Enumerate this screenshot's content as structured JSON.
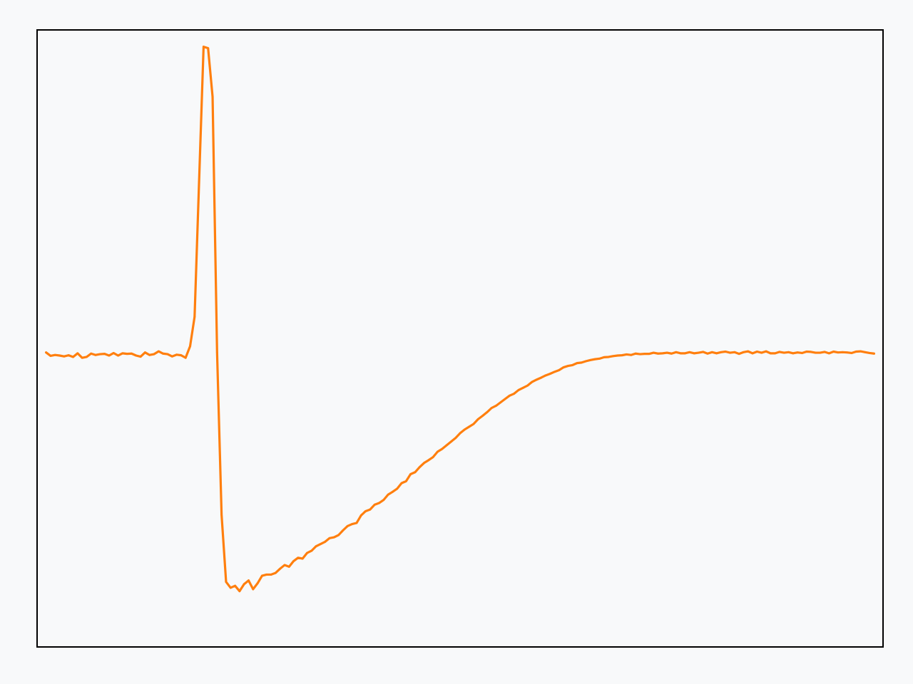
{
  "chart_data": {
    "type": "line",
    "title": "",
    "xlabel": "",
    "ylabel": "",
    "grid": false,
    "legend": "none",
    "axis_ticks": "hidden",
    "xlim": [
      -0.01,
      0.93
    ],
    "ylim": [
      -1.05,
      1.15
    ],
    "x": [
      0.0,
      0.005,
      0.01,
      0.015,
      0.02,
      0.025,
      0.03,
      0.035,
      0.04,
      0.045,
      0.05,
      0.055,
      0.06,
      0.065,
      0.07,
      0.075,
      0.08,
      0.085,
      0.09,
      0.095,
      0.1,
      0.105,
      0.11,
      0.115,
      0.12,
      0.125,
      0.13,
      0.135,
      0.14,
      0.145,
      0.15,
      0.155,
      0.16,
      0.165,
      0.17,
      0.175,
      0.18,
      0.185,
      0.19,
      0.195,
      0.2,
      0.205,
      0.21,
      0.215,
      0.22,
      0.225,
      0.23,
      0.235,
      0.24,
      0.245,
      0.25,
      0.255,
      0.26,
      0.265,
      0.27,
      0.275,
      0.28,
      0.285,
      0.29,
      0.295,
      0.3,
      0.305,
      0.31,
      0.315,
      0.32,
      0.325,
      0.33,
      0.335,
      0.34,
      0.345,
      0.35,
      0.355,
      0.36,
      0.365,
      0.37,
      0.375,
      0.38,
      0.385,
      0.39,
      0.395,
      0.4,
      0.405,
      0.41,
      0.415,
      0.42,
      0.425,
      0.43,
      0.435,
      0.44,
      0.445,
      0.45,
      0.455,
      0.46,
      0.465,
      0.47,
      0.475,
      0.48,
      0.485,
      0.49,
      0.495,
      0.5,
      0.505,
      0.51,
      0.515,
      0.52,
      0.525,
      0.53,
      0.535,
      0.54,
      0.545,
      0.55,
      0.555,
      0.56,
      0.565,
      0.57,
      0.575,
      0.58,
      0.585,
      0.59,
      0.595,
      0.6,
      0.605,
      0.61,
      0.615,
      0.62,
      0.625,
      0.63,
      0.635,
      0.64,
      0.645,
      0.65,
      0.655,
      0.66,
      0.665,
      0.67,
      0.675,
      0.68,
      0.685,
      0.69,
      0.695,
      0.7,
      0.705,
      0.71,
      0.715,
      0.72,
      0.725,
      0.73,
      0.735,
      0.74,
      0.745,
      0.75,
      0.755,
      0.76,
      0.765,
      0.77,
      0.775,
      0.78,
      0.785,
      0.79,
      0.795,
      0.8,
      0.805,
      0.81,
      0.815,
      0.82,
      0.825,
      0.83,
      0.835,
      0.84,
      0.845,
      0.85,
      0.855,
      0.86,
      0.865,
      0.87,
      0.875,
      0.88,
      0.885,
      0.89,
      0.895,
      0.9,
      0.905,
      0.91,
      0.915,
      0.92
    ],
    "series": [
      {
        "color": "#ff7f0e",
        "values": [
          -0.0,
          -0.012,
          -0.009,
          -0.011,
          -0.014,
          -0.01,
          -0.016,
          -0.003,
          -0.019,
          -0.016,
          -0.004,
          -0.009,
          -0.006,
          -0.005,
          -0.011,
          -0.002,
          -0.011,
          -0.003,
          -0.005,
          -0.004,
          -0.011,
          -0.015,
          0.0,
          -0.009,
          -0.006,
          0.004,
          -0.004,
          -0.006,
          -0.014,
          -0.008,
          -0.01,
          -0.019,
          0.022,
          0.127,
          0.609,
          1.09,
          1.085,
          0.912,
          0.0,
          -0.579,
          -0.818,
          -0.839,
          -0.832,
          -0.851,
          -0.826,
          -0.813,
          -0.844,
          -0.823,
          -0.796,
          -0.792,
          -0.792,
          -0.786,
          -0.771,
          -0.758,
          -0.764,
          -0.744,
          -0.732,
          -0.735,
          -0.715,
          -0.707,
          -0.691,
          -0.683,
          -0.675,
          -0.662,
          -0.659,
          -0.651,
          -0.634,
          -0.619,
          -0.612,
          -0.608,
          -0.581,
          -0.566,
          -0.56,
          -0.543,
          -0.537,
          -0.526,
          -0.507,
          -0.497,
          -0.486,
          -0.466,
          -0.459,
          -0.434,
          -0.427,
          -0.409,
          -0.394,
          -0.384,
          -0.373,
          -0.354,
          -0.344,
          -0.331,
          -0.318,
          -0.305,
          -0.288,
          -0.275,
          -0.265,
          -0.255,
          -0.238,
          -0.226,
          -0.213,
          -0.198,
          -0.19,
          -0.178,
          -0.166,
          -0.154,
          -0.147,
          -0.134,
          -0.126,
          -0.118,
          -0.105,
          -0.097,
          -0.09,
          -0.082,
          -0.076,
          -0.069,
          -0.063,
          -0.053,
          -0.048,
          -0.045,
          -0.038,
          -0.036,
          -0.031,
          -0.027,
          -0.024,
          -0.022,
          -0.017,
          -0.016,
          -0.013,
          -0.011,
          -0.01,
          -0.007,
          -0.009,
          -0.004,
          -0.006,
          -0.005,
          -0.005,
          -0.001,
          -0.004,
          -0.003,
          -0.001,
          -0.004,
          0.001,
          -0.003,
          -0.003,
          0.001,
          -0.003,
          -0.001,
          0.002,
          -0.004,
          0.001,
          -0.003,
          0.001,
          0.003,
          -0.001,
          0.001,
          -0.005,
          0.001,
          0.004,
          -0.003,
          0.003,
          -0.001,
          0.004,
          -0.003,
          -0.003,
          0.002,
          -0.001,
          0.001,
          -0.003,
          0.0,
          -0.002,
          0.003,
          0.002,
          -0.001,
          -0.001,
          0.002,
          -0.003,
          0.003,
          0.0,
          0.001,
          0.0,
          -0.002,
          0.003,
          0.004,
          0.001,
          -0.002,
          -0.004
        ]
      }
    ]
  }
}
